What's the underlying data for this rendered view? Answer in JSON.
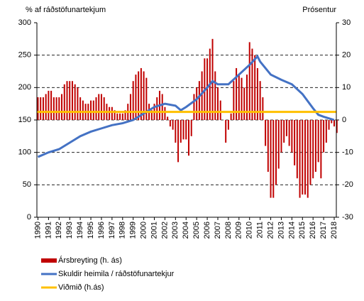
{
  "chart_data": {
    "type": "combo",
    "y_label": "% af ráðstöfunartekjum",
    "y2_label": "Prósentur",
    "xlim": [
      1989.9,
      2018.2
    ],
    "xticks": [
      1990,
      1991,
      1992,
      1993,
      1994,
      1995,
      1996,
      1997,
      1998,
      1999,
      2000,
      2001,
      2002,
      2003,
      2004,
      2005,
      2006,
      2007,
      2008,
      2009,
      2010,
      2011,
      2012,
      2013,
      2014,
      2015,
      2016,
      2017,
      2018
    ],
    "ylim": [
      0,
      300
    ],
    "yticks": [
      0,
      50,
      100,
      150,
      200,
      250,
      300
    ],
    "y2lim": [
      -30,
      30
    ],
    "y2ticks": [
      -30,
      -20,
      -10,
      0,
      10,
      20,
      30
    ],
    "grid": true,
    "series": [
      {
        "name": "Ársbreyting (h. ás)",
        "type": "bar",
        "axis": "y2",
        "color": "#c00000",
        "x": [
          1990,
          1990.25,
          1990.5,
          1990.75,
          1991,
          1991.25,
          1991.5,
          1991.75,
          1992,
          1992.25,
          1992.5,
          1992.75,
          1993,
          1993.25,
          1993.5,
          1993.75,
          1994,
          1994.25,
          1994.5,
          1994.75,
          1995,
          1995.25,
          1995.5,
          1995.75,
          1996,
          1996.25,
          1996.5,
          1996.75,
          1997,
          1997.25,
          1997.5,
          1997.75,
          1998,
          1998.25,
          1998.5,
          1998.75,
          1999,
          1999.25,
          1999.5,
          1999.75,
          2000,
          2000.25,
          2000.5,
          2000.75,
          2001,
          2001.25,
          2001.5,
          2001.75,
          2002,
          2002.25,
          2002.5,
          2002.75,
          2003,
          2003.25,
          2003.5,
          2003.75,
          2004,
          2004.25,
          2004.5,
          2004.75,
          2005,
          2005.25,
          2005.5,
          2005.75,
          2006,
          2006.25,
          2006.5,
          2006.75,
          2007,
          2007.25,
          2007.5,
          2007.75,
          2008,
          2008.25,
          2008.5,
          2008.75,
          2009,
          2009.25,
          2009.5,
          2009.75,
          2010,
          2010.25,
          2010.5,
          2010.75,
          2011,
          2011.25,
          2011.5,
          2011.75,
          2012,
          2012.25,
          2012.5,
          2012.75,
          2013,
          2013.25,
          2013.5,
          2013.75,
          2014,
          2014.25,
          2014.5,
          2014.75,
          2015,
          2015.25,
          2015.5,
          2015.75,
          2016,
          2016.25,
          2016.5,
          2016.75,
          2017,
          2017.25,
          2017.5,
          2017.75,
          2018,
          2018.25
        ],
        "values": [
          7,
          7,
          7,
          8,
          9,
          9,
          7,
          7,
          7,
          8,
          11,
          12,
          12,
          12,
          11,
          10,
          7,
          6,
          5,
          5,
          6,
          6,
          7,
          8,
          8,
          7,
          5,
          4,
          4,
          3,
          2,
          2,
          2,
          3,
          5,
          8,
          12,
          14,
          15,
          16,
          15,
          13,
          5,
          3,
          5,
          7,
          9,
          8,
          4,
          1,
          -2,
          -3,
          -7,
          -13,
          -7,
          -6,
          -6,
          -11,
          -5,
          8,
          10,
          12,
          15,
          19,
          19,
          22,
          25,
          15,
          10,
          6,
          0,
          -7,
          -3,
          2,
          12,
          16,
          14,
          13,
          10,
          14,
          24,
          22,
          20,
          16,
          12,
          7,
          -8,
          -16,
          -24,
          -24,
          -20,
          -15,
          -10,
          -7,
          -5,
          -8,
          -10,
          -14,
          -18,
          -24,
          -23,
          -23,
          -24,
          -20,
          -18,
          -16,
          -13,
          -18,
          -10,
          -7,
          -3,
          -1,
          -2,
          -4
        ]
      },
      {
        "name": "Skuldir heimila / ráðstöfunartekjur",
        "type": "line",
        "axis": "y",
        "color": "#4472c4",
        "x": [
          1990,
          1991,
          1992,
          1993,
          1994,
          1995,
          1996,
          1997,
          1998,
          1999,
          2000,
          2001,
          2002,
          2003,
          2003.5,
          2004,
          2005,
          2006,
          2006.5,
          2007,
          2008,
          2009,
          2010,
          2010.75,
          2011,
          2012,
          2013,
          2014,
          2015,
          2016,
          2016.5,
          2017,
          2018
        ],
        "values": [
          93,
          100,
          105,
          115,
          125,
          132,
          137,
          142,
          145,
          150,
          160,
          170,
          175,
          172,
          165,
          170,
          182,
          200,
          210,
          205,
          205,
          220,
          235,
          248,
          240,
          220,
          212,
          205,
          190,
          168,
          158,
          155,
          150
        ]
      }
    ],
    "reference": {
      "name": "Viðmið (h.ás)",
      "axis": "y2",
      "value": 2.5,
      "color": "#ffc000"
    }
  }
}
